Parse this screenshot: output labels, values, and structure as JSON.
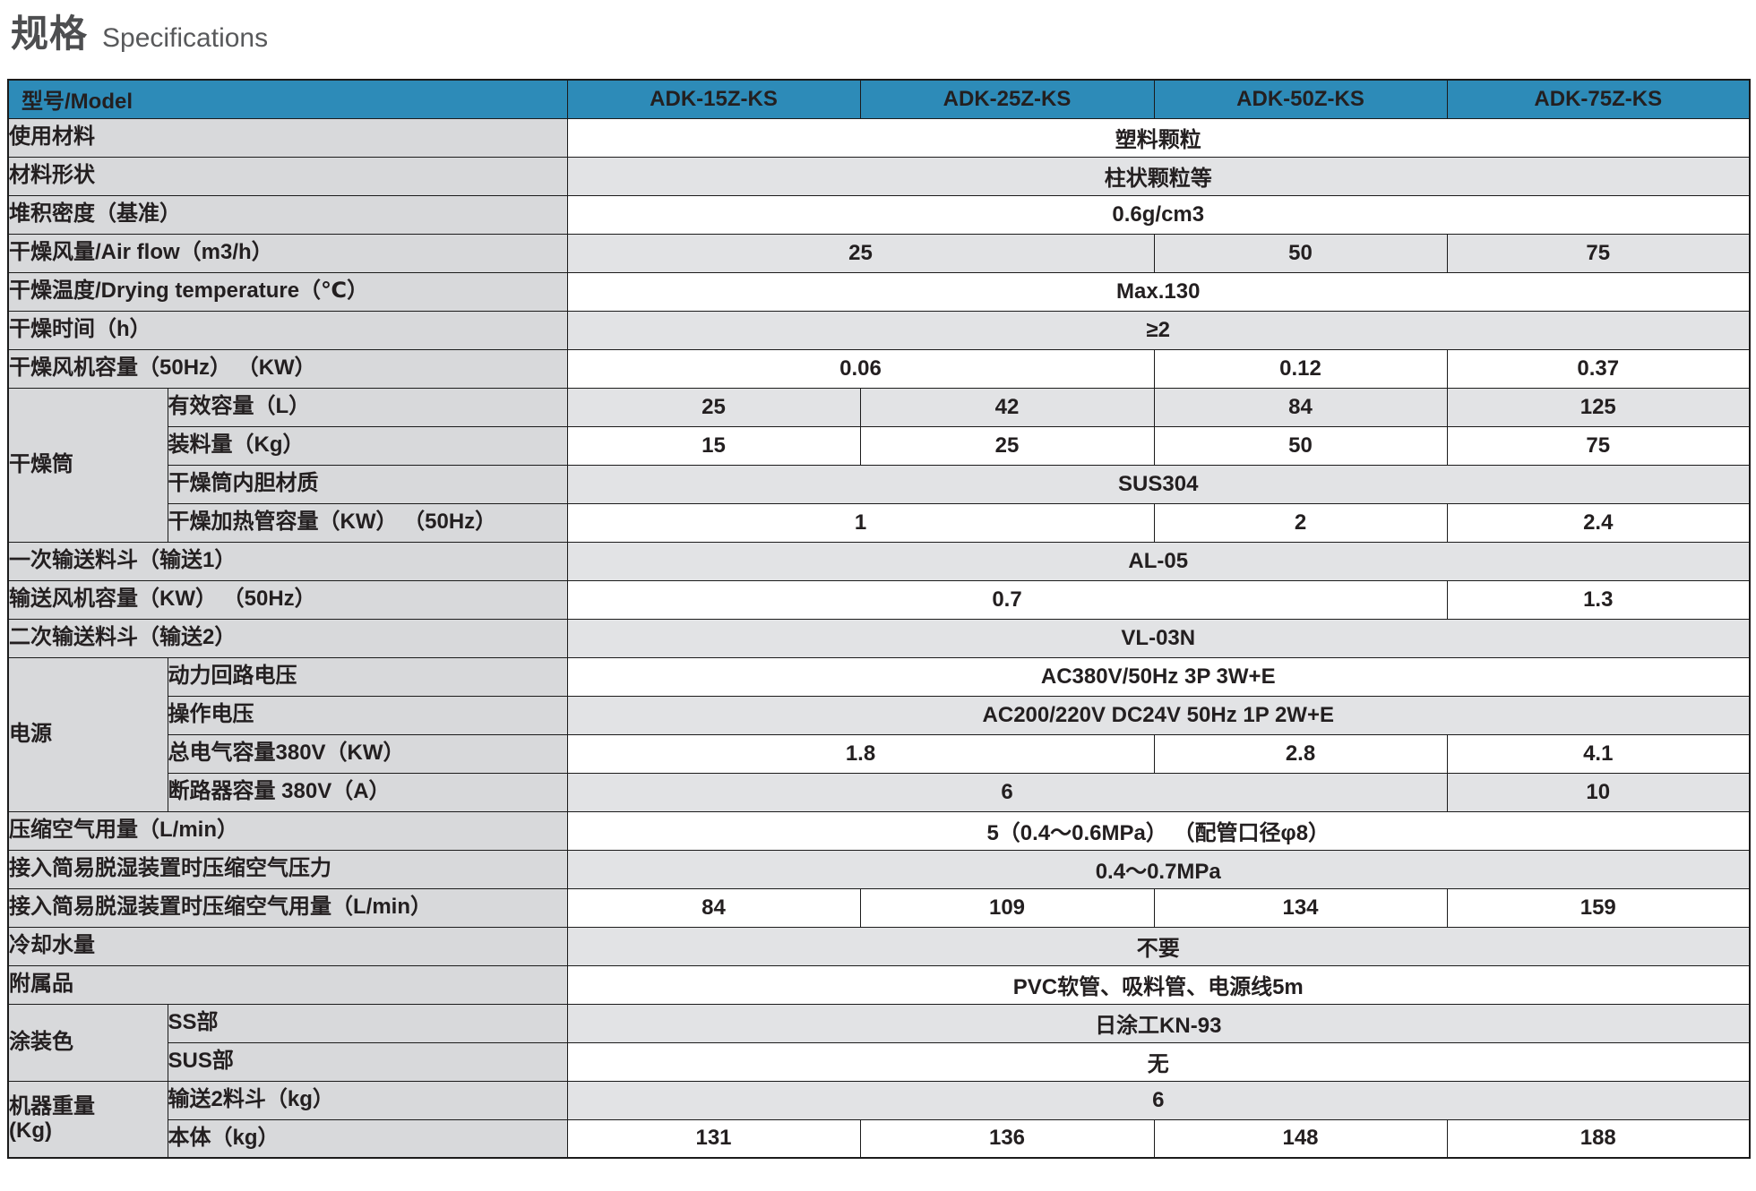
{
  "title": {
    "zh": "规格",
    "en": "Specifications"
  },
  "colors": {
    "header_bg": "#2d8bb8",
    "header_text": "#ffffff",
    "label_bg": "#d8d9db",
    "row_alt_bg": "#e2e3e5",
    "border": "#1b1b1b",
    "text": "#231f20",
    "title_text": "#58595b"
  },
  "table": {
    "header": {
      "label": "型号/Model",
      "models": [
        "ADK-15Z-KS",
        "ADK-25Z-KS",
        "ADK-50Z-KS",
        "ADK-75Z-KS"
      ]
    },
    "rows": [
      {
        "label": "使用材料",
        "shade": false,
        "cells": [
          {
            "text": "塑料颗粒",
            "span": 4
          }
        ]
      },
      {
        "label": "材料形状",
        "shade": true,
        "cells": [
          {
            "text": "柱状颗粒等",
            "span": 4
          }
        ]
      },
      {
        "label": "堆积密度（基准）",
        "shade": false,
        "cells": [
          {
            "text": "0.6g/cm3",
            "span": 4
          }
        ]
      },
      {
        "label": "干燥风量/Air flow（m3/h）",
        "shade": true,
        "cells": [
          {
            "text": "25",
            "span": 2
          },
          {
            "text": "50",
            "span": 1
          },
          {
            "text": "75",
            "span": 1
          }
        ]
      },
      {
        "label": "干燥温度/Drying temperature（℃）",
        "shade": false,
        "cells": [
          {
            "text": "Max.130",
            "span": 4
          }
        ]
      },
      {
        "label": "干燥时间（h）",
        "shade": true,
        "cells": [
          {
            "text": "≥2",
            "span": 4
          }
        ]
      },
      {
        "label": "干燥风机容量（50Hz） （KW）",
        "shade": false,
        "cells": [
          {
            "text": "0.06",
            "span": 2
          },
          {
            "text": "0.12",
            "span": 1
          },
          {
            "text": "0.37",
            "span": 1
          }
        ]
      },
      {
        "group": {
          "label": "干燥筒",
          "rowspan": 4
        },
        "in_group": true,
        "label": "有效容量（L）",
        "shade": true,
        "cells": [
          {
            "text": "25",
            "span": 1
          },
          {
            "text": "42",
            "span": 1
          },
          {
            "text": "84",
            "span": 1
          },
          {
            "text": "125",
            "span": 1
          }
        ]
      },
      {
        "in_group": true,
        "label": "装料量（Kg）",
        "shade": false,
        "cells": [
          {
            "text": "15",
            "span": 1
          },
          {
            "text": "25",
            "span": 1
          },
          {
            "text": "50",
            "span": 1
          },
          {
            "text": "75",
            "span": 1
          }
        ]
      },
      {
        "in_group": true,
        "label": "干燥筒内胆材质",
        "shade": true,
        "cells": [
          {
            "text": "SUS304",
            "span": 4
          }
        ]
      },
      {
        "in_group": true,
        "label": "干燥加热管容量（KW） （50Hz）",
        "shade": false,
        "cells": [
          {
            "text": "1",
            "span": 2
          },
          {
            "text": "2",
            "span": 1
          },
          {
            "text": "2.4",
            "span": 1
          }
        ]
      },
      {
        "label": "一次输送料斗（输送1）",
        "shade": true,
        "cells": [
          {
            "text": "AL-05",
            "span": 4
          }
        ]
      },
      {
        "label": "输送风机容量（KW） （50Hz）",
        "shade": false,
        "cells": [
          {
            "text": "0.7",
            "span": 3
          },
          {
            "text": "1.3",
            "span": 1
          }
        ]
      },
      {
        "label": "二次输送料斗（输送2）",
        "shade": true,
        "cells": [
          {
            "text": "VL-03N",
            "span": 4
          }
        ]
      },
      {
        "group": {
          "label": "电源",
          "rowspan": 4
        },
        "in_group": true,
        "label": "动力回路电压",
        "shade": false,
        "cells": [
          {
            "text": "AC380V/50Hz 3P 3W+E",
            "span": 4
          }
        ]
      },
      {
        "in_group": true,
        "label": "操作电压",
        "shade": true,
        "cells": [
          {
            "text": "AC200/220V DC24V 50Hz 1P 2W+E",
            "span": 4
          }
        ]
      },
      {
        "in_group": true,
        "label": "总电气容量380V（KW）",
        "shade": false,
        "cells": [
          {
            "text": "1.8",
            "span": 2
          },
          {
            "text": "2.8",
            "span": 1
          },
          {
            "text": "4.1",
            "span": 1
          }
        ]
      },
      {
        "in_group": true,
        "label": "断路器容量 380V（A）",
        "shade": true,
        "cells": [
          {
            "text": "6",
            "span": 3
          },
          {
            "text": "10",
            "span": 1
          }
        ]
      },
      {
        "label": "压缩空气用量（L/min）",
        "shade": false,
        "cells": [
          {
            "text": "5（0.4～0.6MPa） （配管口径φ8）",
            "span": 4
          }
        ]
      },
      {
        "label": "接入简易脱湿装置时压缩空气压力",
        "shade": true,
        "cells": [
          {
            "text": "0.4～0.7MPa",
            "span": 4
          }
        ]
      },
      {
        "label": "接入简易脱湿装置时压缩空气用量（L/min）",
        "shade": false,
        "cells": [
          {
            "text": "84",
            "span": 1
          },
          {
            "text": "109",
            "span": 1
          },
          {
            "text": "134",
            "span": 1
          },
          {
            "text": "159",
            "span": 1
          }
        ]
      },
      {
        "label": "冷却水量",
        "shade": true,
        "cells": [
          {
            "text": "不要",
            "span": 4
          }
        ]
      },
      {
        "label": "附属品",
        "shade": false,
        "cells": [
          {
            "text": "PVC软管、吸料管、电源线5m",
            "span": 4
          }
        ]
      },
      {
        "group": {
          "label": "涂装色",
          "rowspan": 2
        },
        "in_group": true,
        "label": "SS部",
        "shade": true,
        "cells": [
          {
            "text": "日涂工KN-93",
            "span": 4
          }
        ]
      },
      {
        "in_group": true,
        "label": "SUS部",
        "shade": false,
        "cells": [
          {
            "text": "无",
            "span": 4
          }
        ]
      },
      {
        "group": {
          "label": "机器重量\n(Kg)",
          "rowspan": 2
        },
        "in_group": true,
        "label": "输送2料斗（kg）",
        "shade": true,
        "cells": [
          {
            "text": "6",
            "span": 4
          }
        ]
      },
      {
        "in_group": true,
        "label": "本体（kg）",
        "shade": false,
        "cells": [
          {
            "text": "131",
            "span": 1
          },
          {
            "text": "136",
            "span": 1
          },
          {
            "text": "148",
            "span": 1
          },
          {
            "text": "188",
            "span": 1
          }
        ]
      }
    ]
  }
}
